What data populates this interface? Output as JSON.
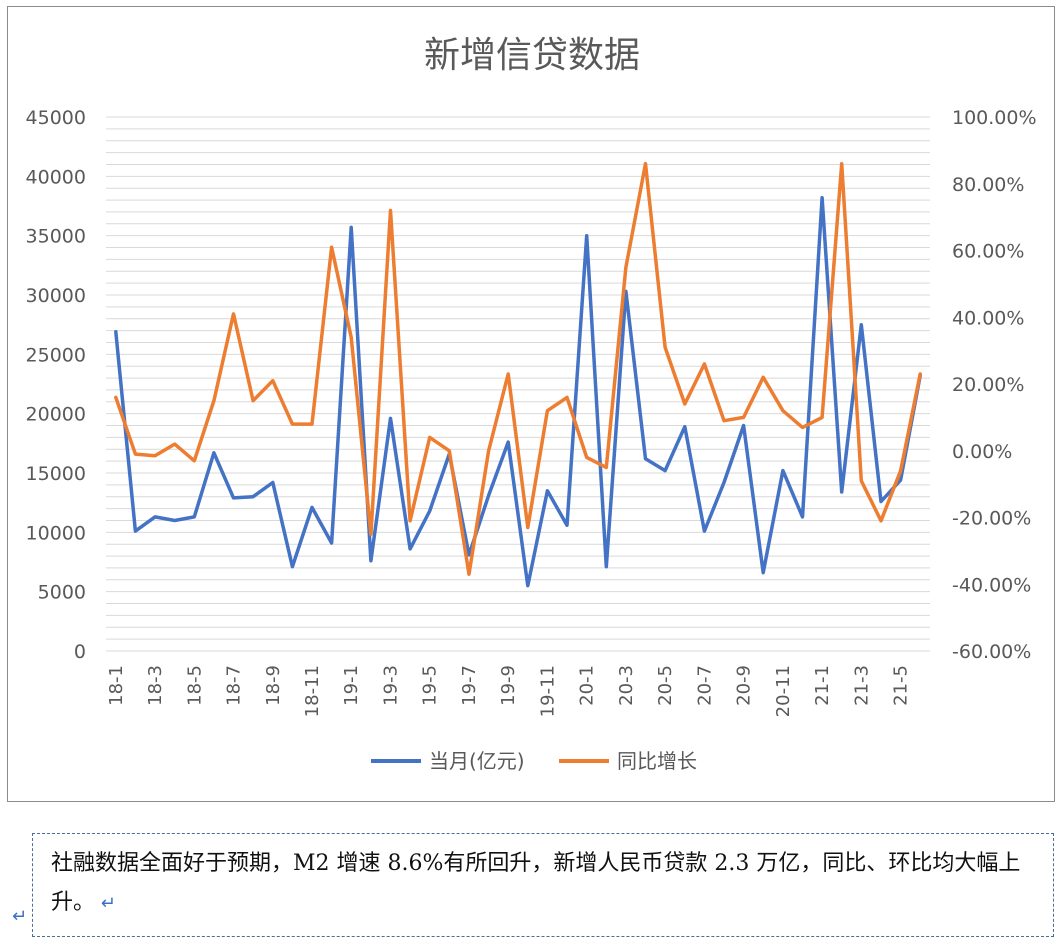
{
  "chart_data": {
    "type": "line",
    "title": "新增信贷数据",
    "categories": [
      "18-1",
      "18-2",
      "18-3",
      "18-4",
      "18-5",
      "18-6",
      "18-7",
      "18-8",
      "18-9",
      "18-10",
      "18-11",
      "18-12",
      "19-1",
      "19-2",
      "19-3",
      "19-4",
      "19-5",
      "19-6",
      "19-7",
      "19-8",
      "19-9",
      "19-10",
      "19-11",
      "19-12",
      "20-1",
      "20-2",
      "20-3",
      "20-4",
      "20-5",
      "20-6",
      "20-7",
      "20-8",
      "20-9",
      "20-10",
      "20-11",
      "20-12",
      "21-1",
      "21-2",
      "21-3",
      "21-4",
      "21-5",
      "21-6"
    ],
    "x_tick_labels": [
      "18-1",
      "18-3",
      "18-5",
      "18-7",
      "18-9",
      "18-11",
      "19-1",
      "19-3",
      "19-5",
      "19-7",
      "19-9",
      "19-11",
      "20-1",
      "20-3",
      "20-5",
      "20-7",
      "20-9",
      "20-11",
      "21-1",
      "21-3",
      "21-5"
    ],
    "y_left": {
      "min": 0,
      "max": 45000,
      "ticks": [
        "0",
        "5000",
        "10000",
        "15000",
        "20000",
        "25000",
        "30000",
        "35000",
        "40000",
        "45000"
      ]
    },
    "y_right": {
      "min": -60,
      "max": 100,
      "ticks": [
        "-60.00%",
        "-40.00%",
        "-20.00%",
        "0.00%",
        "20.00%",
        "40.00%",
        "60.00%",
        "80.00%",
        "100.00%"
      ]
    },
    "series": [
      {
        "name": "当月(亿元)",
        "axis": "left",
        "color": "#4472c4",
        "values": [
          26900,
          10100,
          11300,
          11000,
          11300,
          16700,
          12900,
          13000,
          14200,
          7100,
          12100,
          9100,
          35700,
          7600,
          19600,
          8600,
          11800,
          16600,
          8100,
          13100,
          17600,
          5500,
          13500,
          10600,
          35000,
          7100,
          30300,
          16200,
          15200,
          18900,
          10100,
          14200,
          19000,
          6600,
          15200,
          11300,
          38200,
          13400,
          27500,
          12600,
          14400,
          23200
        ]
      },
      {
        "name": "同比增长",
        "axis": "right",
        "color": "#ed7d31",
        "values": [
          16,
          -1,
          -1.5,
          2,
          -3,
          15,
          41,
          15,
          21,
          8,
          8,
          61,
          34,
          -25,
          72,
          -21,
          4,
          0,
          -37,
          0,
          23,
          -23,
          12,
          16,
          -2,
          -5,
          55,
          86,
          31,
          14,
          26,
          9,
          10,
          22,
          12,
          7,
          10,
          86,
          -9,
          -21,
          -6,
          23
        ]
      }
    ],
    "grid": true,
    "legend_position": "bottom"
  },
  "legend": {
    "series1": "当月(亿元)",
    "series2": "同比增长"
  },
  "note": {
    "text": "社融数据全面好于预期，M2 增速 8.6%有所回升，新增人民币贷款 2.3 万亿，同比、环比均大幅上升。"
  }
}
